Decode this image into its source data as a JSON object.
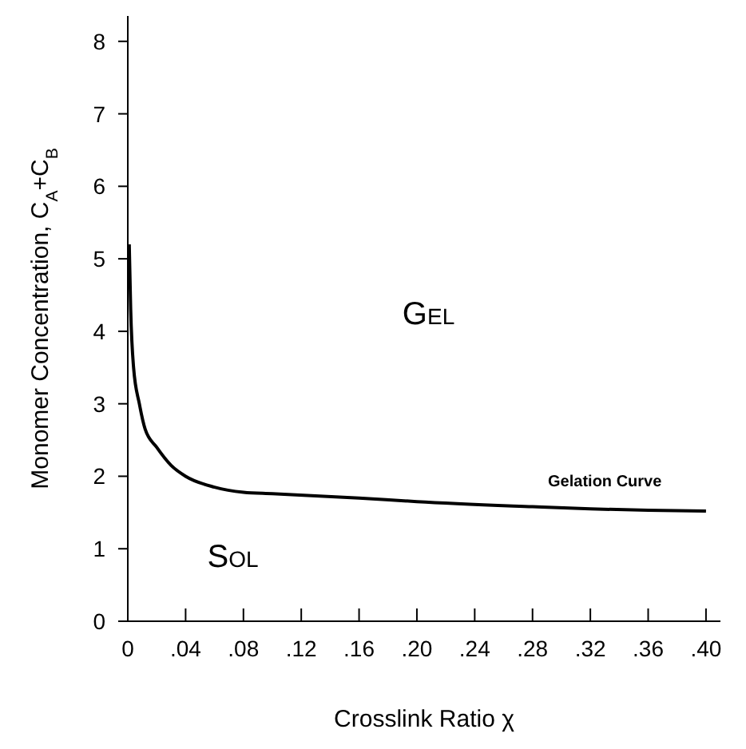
{
  "chart_data": {
    "type": "line",
    "xlabel": "Crosslink Ratio χ",
    "ylabel": "Monomer Concentration, C$_{A}$+C$_{B}$",
    "xlim": [
      0,
      0.41
    ],
    "ylim": [
      0,
      8.35
    ],
    "xticks": [
      0,
      {
        "value": 0.04,
        "label": ".04"
      },
      {
        "value": 0.08,
        "label": ".08"
      },
      {
        "value": 0.12,
        "label": ".12"
      },
      {
        "value": 0.16,
        "label": ".16"
      },
      {
        "value": 0.2,
        "label": ".20"
      },
      {
        "value": 0.24,
        "label": ".24"
      },
      {
        "value": 0.28,
        "label": ".28"
      },
      {
        "value": 0.32,
        "label": ".32"
      },
      {
        "value": 0.36,
        "label": ".36"
      },
      {
        "value": 0.4,
        "label": ".40"
      }
    ],
    "yticks": [
      0,
      1,
      2,
      3,
      4,
      5,
      6,
      7,
      8
    ],
    "grid": false,
    "marker": "none",
    "line_style": "solid",
    "series": [
      {
        "color": "#000000",
        "x": [
          0.001,
          0.002,
          0.004,
          0.008,
          0.012,
          0.02,
          0.03,
          0.04,
          0.06,
          0.08,
          0.1,
          0.16,
          0.2,
          0.28,
          0.32,
          0.36,
          0.4
        ],
        "values": [
          5.2,
          4.3,
          3.5,
          3.0,
          2.65,
          2.4,
          2.15,
          2.0,
          1.85,
          1.78,
          1.76,
          1.7,
          1.65,
          1.58,
          1.55,
          1.53,
          1.52
        ]
      }
    ],
    "annotations": [
      {
        "text": "Gelation Curve",
        "x": 0.33,
        "y": 1.55
      },
      "Gel",
      "Sol"
    ]
  }
}
